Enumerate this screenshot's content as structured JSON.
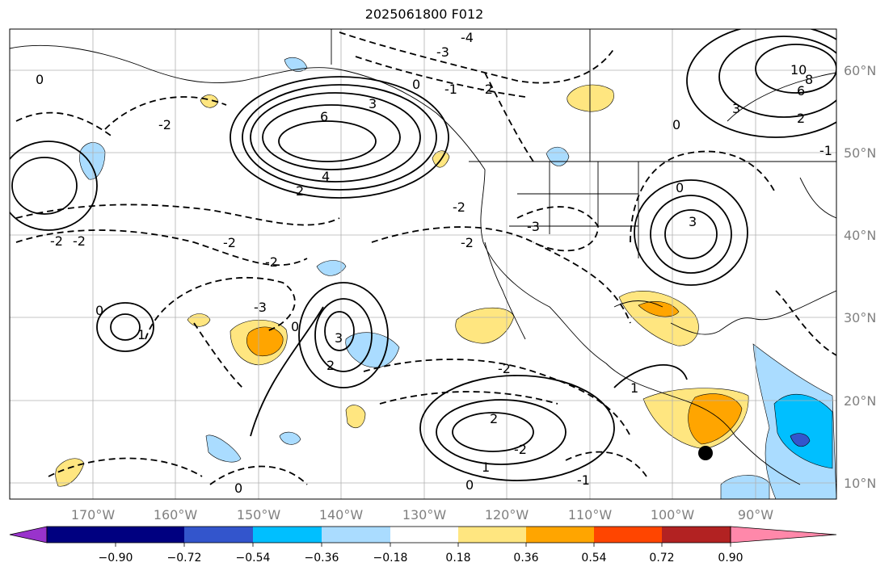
{
  "title": "2025061800 F012",
  "lon_labels": [
    "170°W",
    "160°W",
    "150°W",
    "140°W",
    "130°W",
    "120°W",
    "110°W",
    "100°W",
    "90°W"
  ],
  "lat_labels": [
    "60°N",
    "50°N",
    "40°N",
    "30°N",
    "20°N",
    "10°N"
  ],
  "colorbar": {
    "colors": [
      "#9933cc",
      "#000080",
      "#3355cc",
      "#00bfff",
      "#aadcff",
      "#ffffff",
      "#ffe680",
      "#ffa500",
      "#ff4500",
      "#b22222",
      "#ff88aa"
    ],
    "tick_labels": [
      "−0.90",
      "−0.72",
      "−0.54",
      "−0.36",
      "−0.18",
      "0.18",
      "0.36",
      "0.54",
      "0.72",
      "0.90"
    ]
  },
  "contour_labels": [
    "-4",
    "-3",
    "6",
    "4",
    "-2",
    "3",
    "2",
    "0",
    "-1",
    "-2",
    "-2",
    "-2",
    "-2",
    "-3",
    "-3",
    "1",
    "3",
    "2",
    "0",
    "-2",
    "-2",
    "-2",
    "3",
    "-2",
    "0",
    "0",
    "1",
    "2",
    "1",
    "0",
    "0",
    "-1",
    "10",
    "8",
    "6",
    "3",
    "2",
    "0",
    "-1",
    "0",
    "-2"
  ]
}
